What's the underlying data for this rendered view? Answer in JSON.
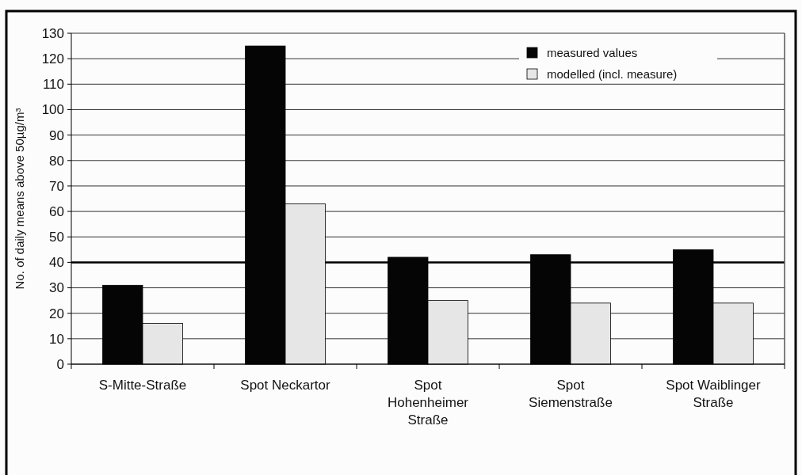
{
  "chart_data": {
    "type": "bar",
    "ylabel": "No. of daily means above 50µg/m³",
    "categories": [
      "S-Mitte-Straße",
      "Spot Neckartor",
      "Spot\nHohenheimer\nStraße",
      "Spot\nSiemenstraße",
      "Spot Waiblinger\nStraße"
    ],
    "series": [
      {
        "name": "measured values",
        "color": "#050505",
        "values": [
          31,
          125,
          42,
          43,
          45
        ]
      },
      {
        "name": "modelled (incl. measure)",
        "color": "#e6e6e6",
        "values": [
          16,
          63,
          25,
          24,
          24
        ]
      }
    ],
    "ylim": [
      0,
      130
    ],
    "yticks": [
      0,
      10,
      20,
      30,
      40,
      50,
      60,
      70,
      80,
      90,
      100,
      110,
      120,
      130
    ],
    "grid": "y",
    "legend": "top right",
    "ref_lines": [
      {
        "axis": "y",
        "value": 40,
        "color": "#000000"
      }
    ]
  }
}
